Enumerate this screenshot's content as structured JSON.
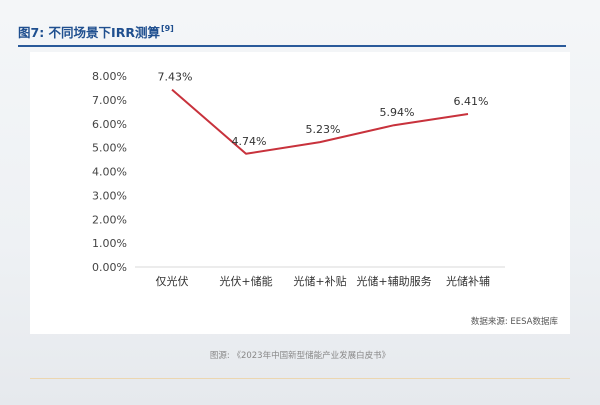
{
  "header": {
    "title": "图7: 不同场景下IRR测算",
    "ref": "[9]"
  },
  "footer": {
    "source": "数据来源: EESA数据库",
    "caption": "图源: 《2023年中国新型储能产业发展白皮书》"
  },
  "colors": {
    "line": "#c8323c",
    "title": "#1f4f8f",
    "rule": "#2a5a9a"
  },
  "chart_data": {
    "type": "line",
    "title": "",
    "xlabel": "",
    "ylabel": "",
    "categories": [
      "仅光伏",
      "光伏+储能",
      "光储+补贴",
      "光储+辅助服务",
      "光储补辅"
    ],
    "series": [
      {
        "values": [
          7.43,
          4.74,
          5.23,
          5.94,
          6.41
        ],
        "labels": [
          "7.43%",
          "4.74%",
          "5.23%",
          "5.94%",
          "6.41%"
        ]
      }
    ],
    "ylim": [
      0,
      8
    ],
    "yticks": [
      0,
      1,
      2,
      3,
      4,
      5,
      6,
      7,
      8
    ],
    "ytick_labels": [
      "0.00%",
      "1.00%",
      "2.00%",
      "3.00%",
      "4.00%",
      "5.00%",
      "6.00%",
      "7.00%",
      "8.00%"
    ],
    "grid": false,
    "legend": "none"
  }
}
